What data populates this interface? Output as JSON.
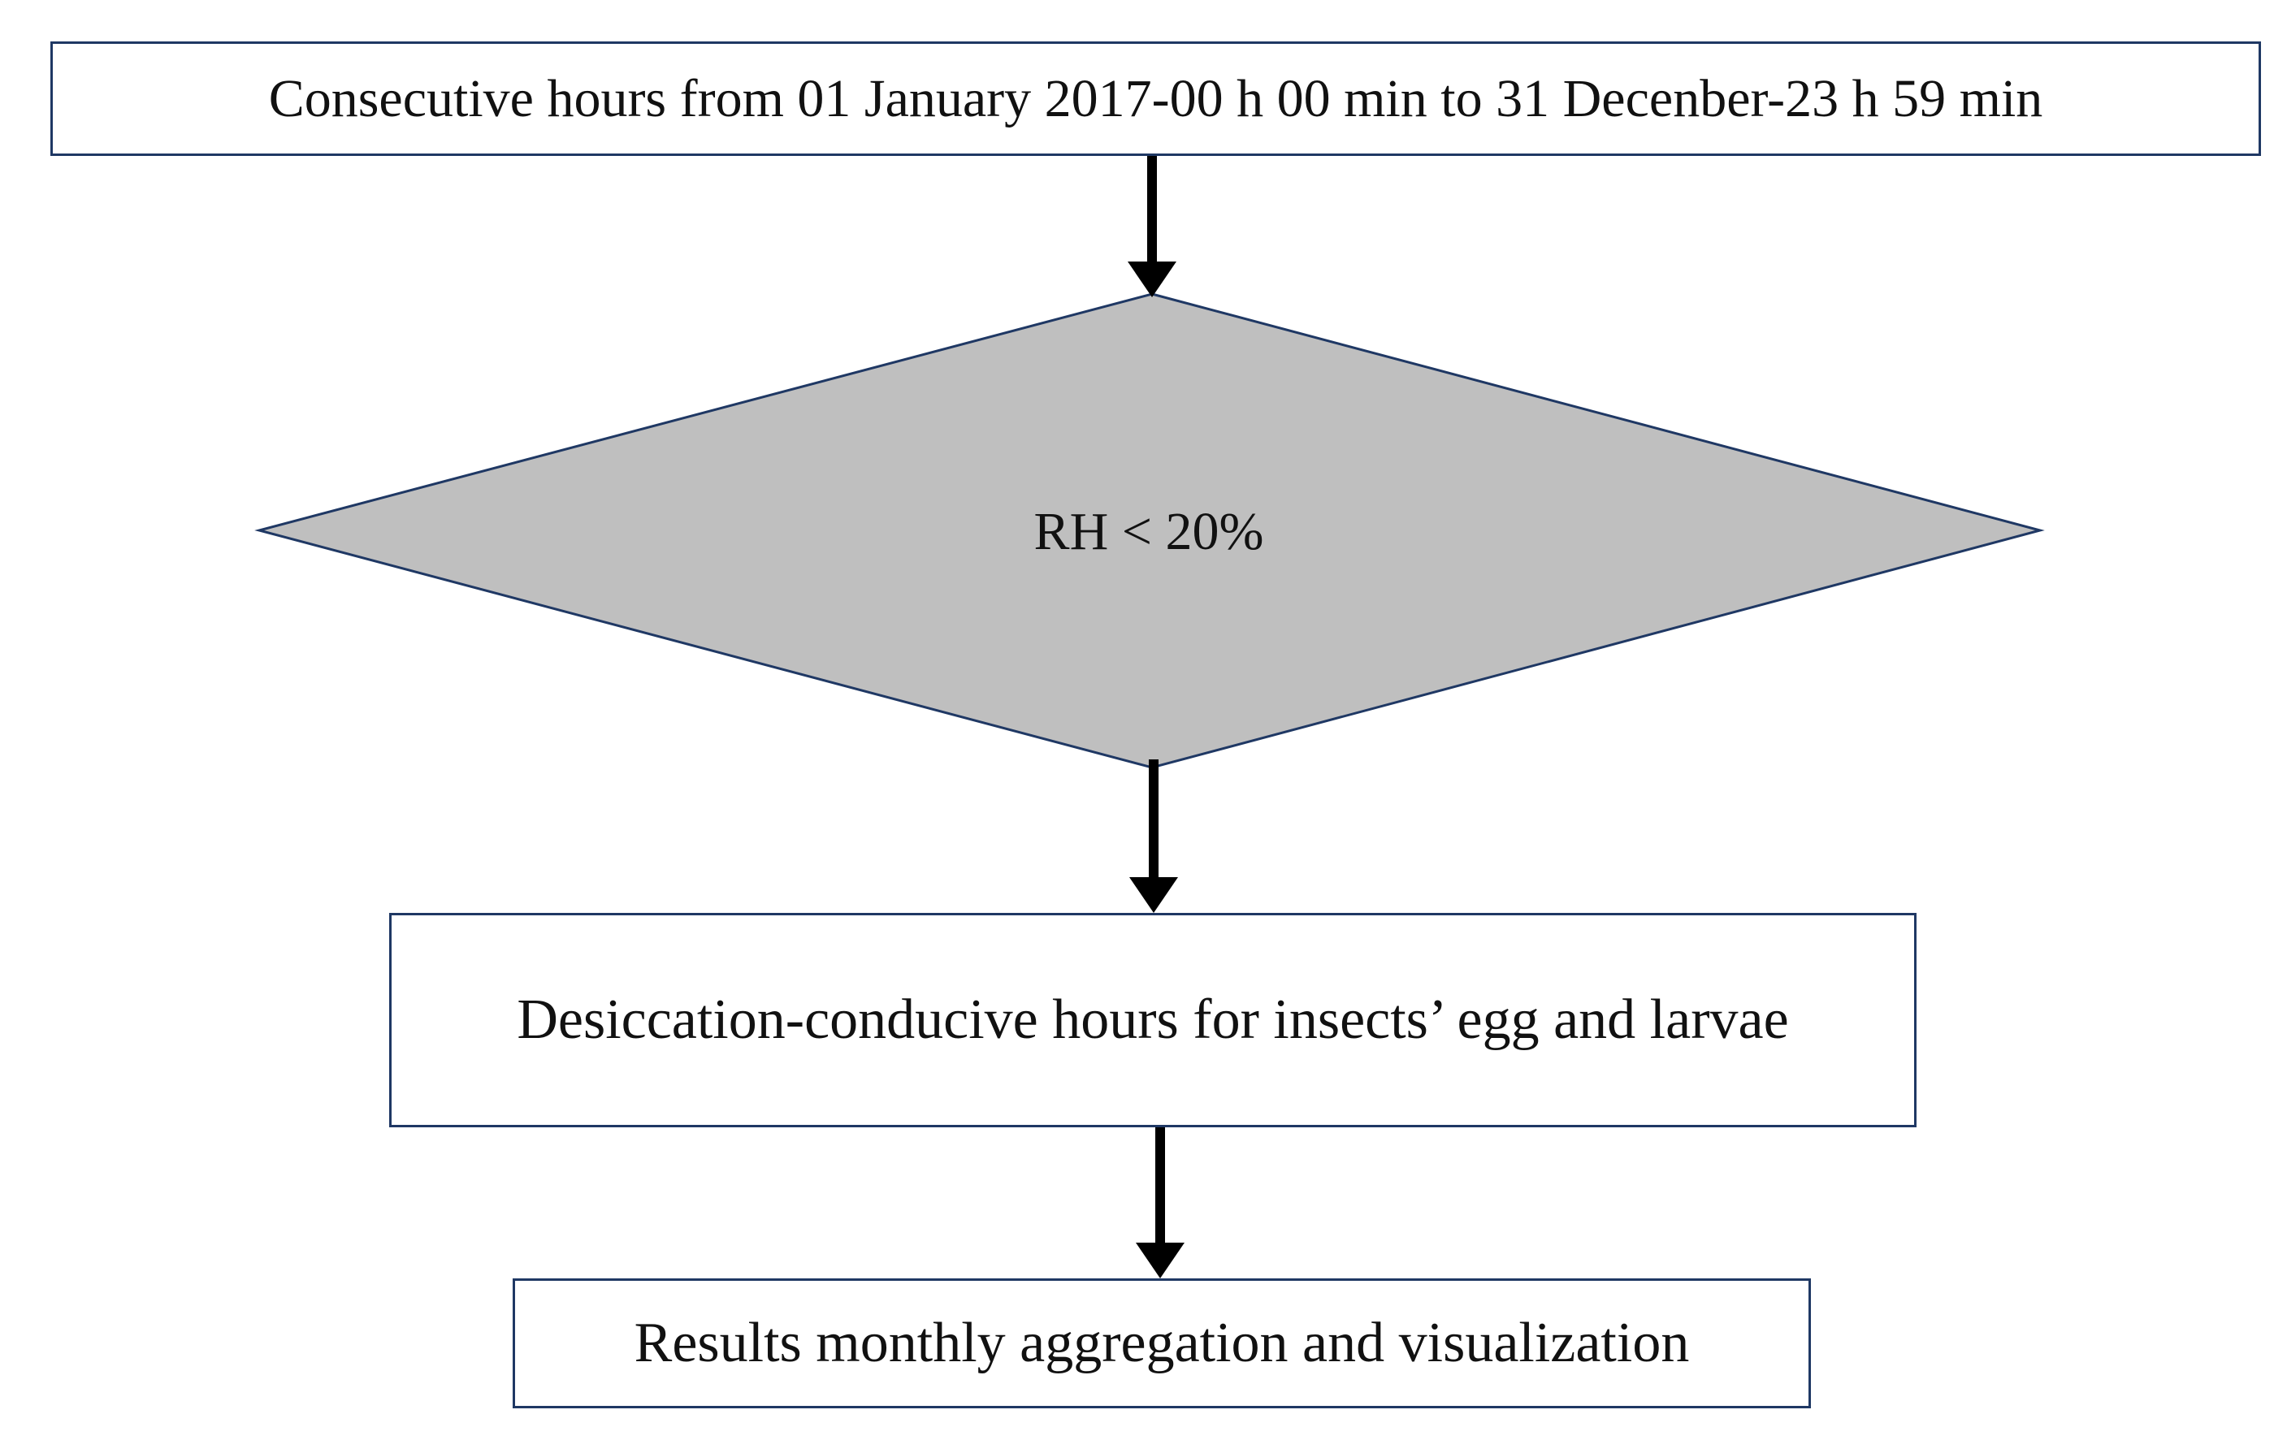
{
  "nodes": {
    "start": {
      "label": "Consecutive hours from 01 January 2017-00 h 00 min to 31 Decenber-23 h 59 min"
    },
    "decision": {
      "label": "RH < 20%"
    },
    "output": {
      "label": "Desiccation-conducive hours for insects’ egg and larvae"
    },
    "results": {
      "label": "Results monthly aggregation and visualization"
    }
  },
  "edges": [
    {
      "from": "start",
      "to": "decision"
    },
    {
      "from": "decision",
      "to": "output"
    },
    {
      "from": "output",
      "to": "results"
    }
  ],
  "colors": {
    "box_border": "#1f3864",
    "decision_fill": "#bfbfbf",
    "arrow": "#000000",
    "text": "#111111"
  }
}
